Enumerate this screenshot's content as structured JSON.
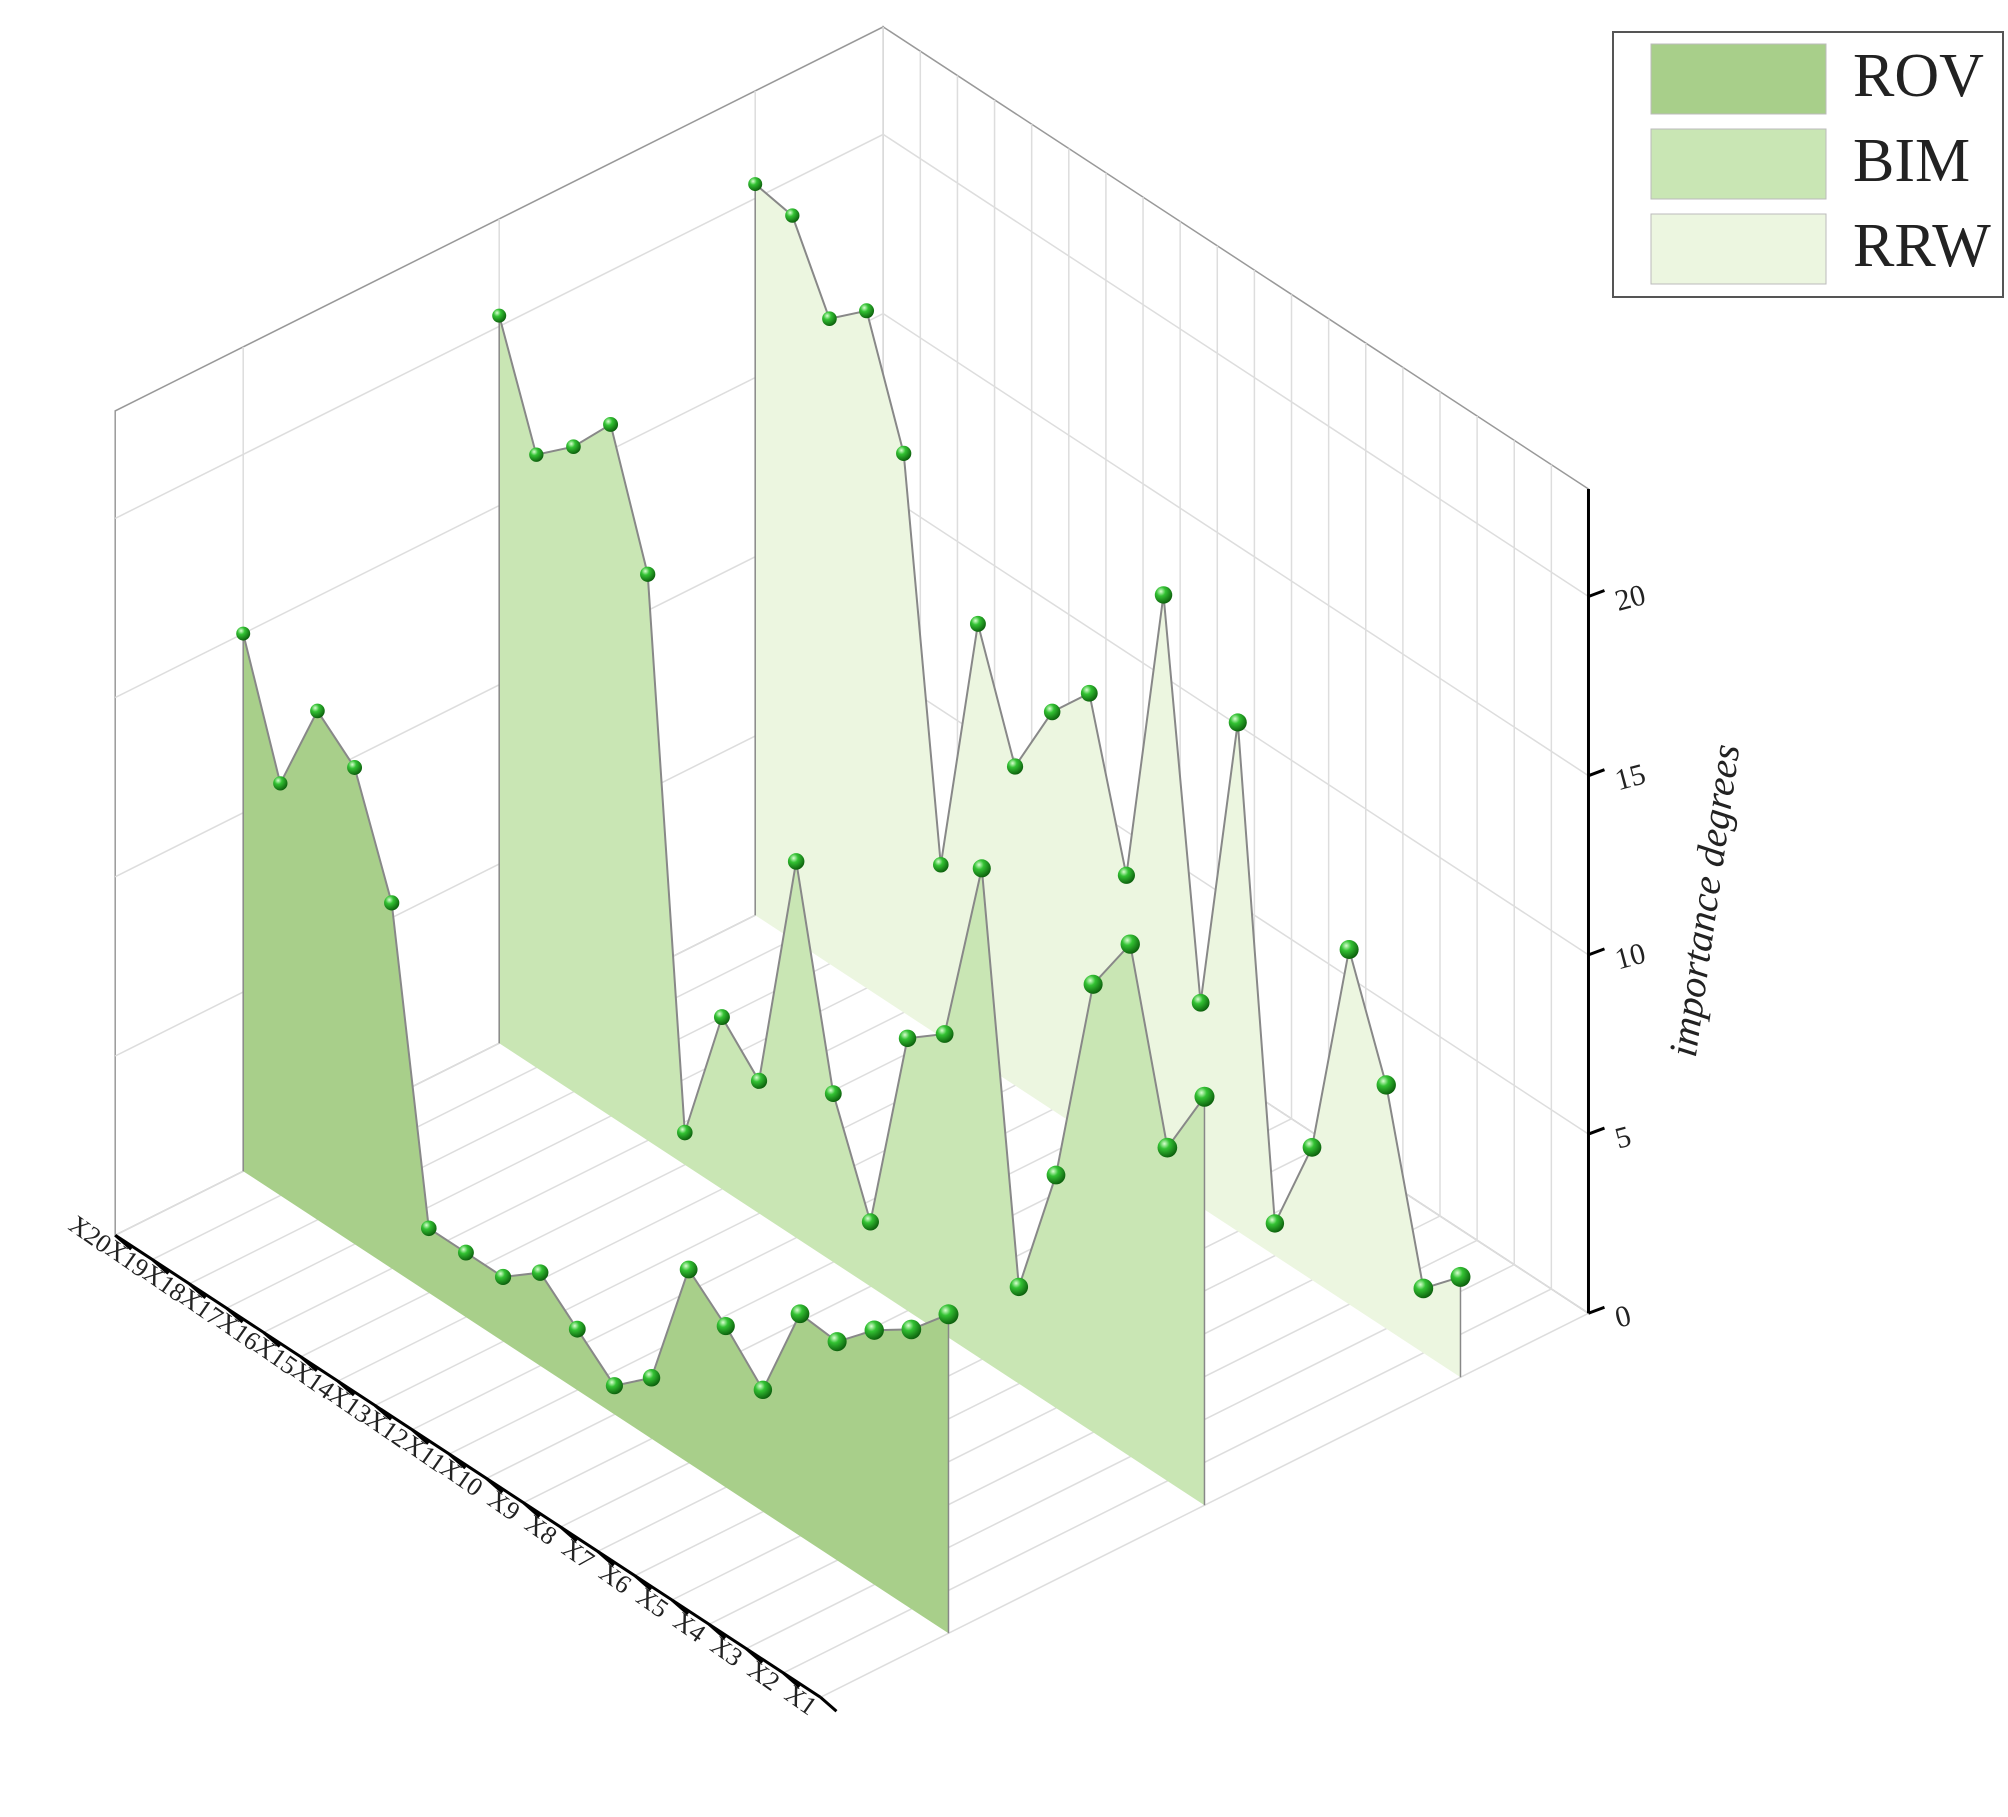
{
  "chart_data": {
    "type": "wall3d",
    "categories": [
      "X1",
      "X2",
      "X3",
      "X4",
      "X5",
      "X6",
      "X7",
      "X8",
      "X9",
      "X10",
      "X11",
      "X12",
      "X13",
      "X14",
      "X15",
      "X16",
      "X17",
      "X18",
      "X19",
      "X20"
    ],
    "series": [
      {
        "name": "ROV",
        "color": "#a8cf8a",
        "values": [
          8.9,
          7.8,
          7.1,
          6.1,
          6.2,
          3.4,
          4.5,
          5.4,
          1.7,
          0.8,
          1.7,
          2.6,
          1.8,
          1.8,
          1.8,
          10.2,
          13.3,
          14.2,
          11.5,
          15.0
        ]
      },
      {
        "name": "BIM",
        "color": "#c9e6b4",
        "values": [
          11.4,
          9.3,
          14.3,
          12.5,
          6.5,
          2.7,
          13.7,
          8.4,
          7.6,
          1.8,
          4.7,
          10.5,
          3.7,
          4.8,
          0.9,
          15.8,
          19.3,
          18.0,
          17.1,
          20.3
        ]
      },
      {
        "name": "RRW",
        "color": "#ecf6e0",
        "values": [
          2.8,
          1.8,
          6.8,
          9.9,
          3.7,
          0.9,
          14.2,
          5.7,
          16.4,
          7.9,
          12.3,
          11.1,
          8.9,
          12.2,
          4.8,
          15.6,
          18.9,
          18.0,
          20.2,
          20.4
        ]
      }
    ],
    "zlabel": "importance degrees",
    "zlim": [
      0,
      23
    ],
    "zticks": [
      0,
      5,
      10,
      15,
      20
    ],
    "grid": true,
    "legend": "top-right"
  }
}
